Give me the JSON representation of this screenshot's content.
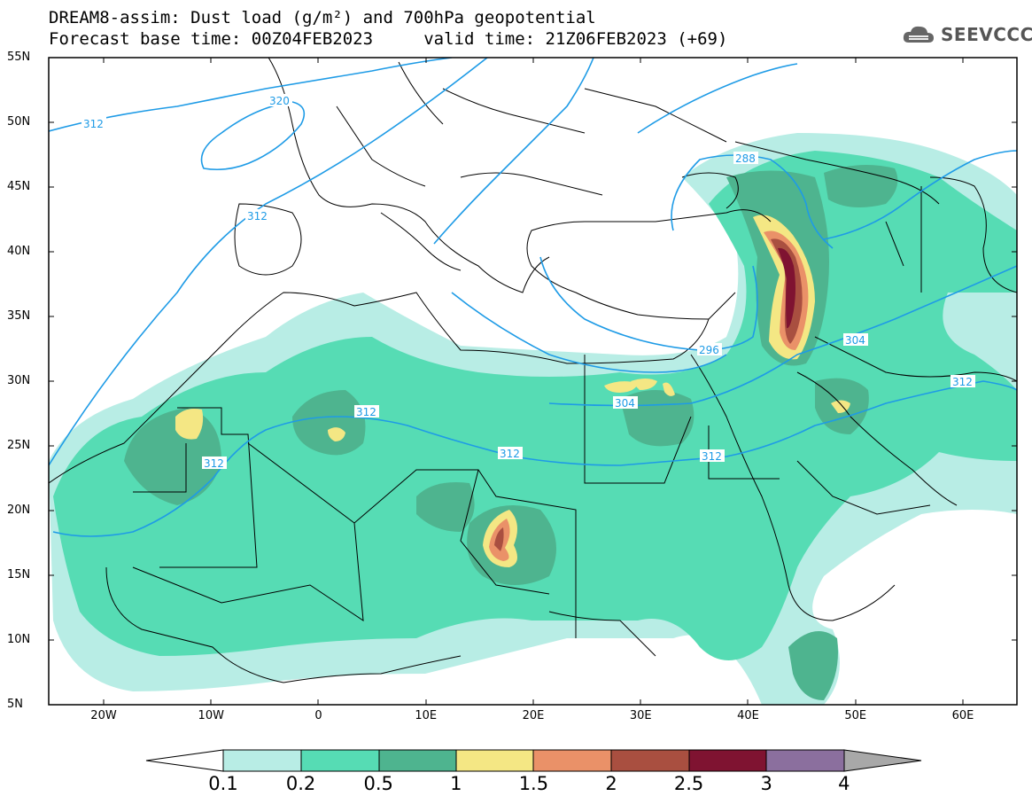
{
  "header": {
    "line1": "DREAM8-assim: Dust load (g/m²) and 700hPa geopotential",
    "line2": "Forecast base time: 00Z04FEB2023     valid time: 21Z06FEB2023 (+69)",
    "logo_text": "SEEVCCC"
  },
  "map": {
    "lat_labels": [
      "55N",
      "50N",
      "45N",
      "40N",
      "35N",
      "30N",
      "25N",
      "20N",
      "15N",
      "10N",
      "5N"
    ],
    "lon_labels": [
      "20W",
      "10W",
      "0",
      "10E",
      "20E",
      "30E",
      "40E",
      "50E",
      "60E"
    ],
    "contour_labels": [
      "320",
      "312",
      "312",
      "312",
      "312",
      "312",
      "312",
      "304",
      "304",
      "312",
      "296",
      "288"
    ]
  },
  "colorbar": {
    "labels": [
      "0.1",
      "0.2",
      "0.5",
      "1",
      "1.5",
      "2",
      "2.5",
      "3",
      "4"
    ],
    "colors": [
      "#b8ede5",
      "#56dcb4",
      "#4eb48f",
      "#f4e784",
      "#ea9168",
      "#a94f40",
      "#7f1331",
      "#8b6f9e",
      "#a8a8a8"
    ]
  }
}
